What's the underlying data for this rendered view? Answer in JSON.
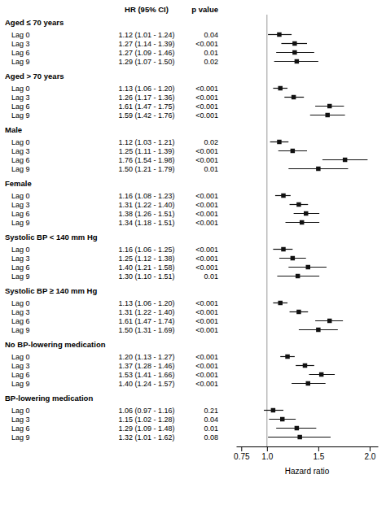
{
  "chart_data": {
    "type": "forest",
    "hr_header": "HR (95% CI)",
    "p_header": "p value",
    "x_label": "Hazard ratio",
    "xlim": [
      0.7,
      2.08
    ],
    "xticks": [
      0.75,
      {
        "value": 1.0,
        "label": "1.0"
      },
      1.5,
      {
        "value": 2.0,
        "label": "2.0"
      }
    ],
    "ref_line": 1.0,
    "color": "#111111",
    "marker": "square",
    "groups": [
      {
        "header": "Aged ≤ 70 years",
        "categories": [
          "Lag 0",
          "Lag 3",
          "Lag 6",
          "Lag 9"
        ],
        "values": [
          1.12,
          1.27,
          1.27,
          1.29
        ],
        "ci_low": [
          1.01,
          1.14,
          1.09,
          1.07
        ],
        "ci_high": [
          1.24,
          1.39,
          1.46,
          1.5
        ],
        "value_labels": [
          "1.12 (1.01 - 1.24)",
          "1.27 (1.14 - 1.39)",
          "1.27 (1.09 - 1.46)",
          "1.29 (1.07 - 1.50)"
        ],
        "p_values": [
          "0.04",
          "<0.001",
          "0.01",
          "0.02"
        ]
      },
      {
        "header": "Aged > 70 years",
        "categories": [
          "Lag 0",
          "Lag 3",
          "Lag 6",
          "Lag 9"
        ],
        "values": [
          1.13,
          1.26,
          1.61,
          1.59
        ],
        "ci_low": [
          1.06,
          1.17,
          1.47,
          1.42
        ],
        "ci_high": [
          1.2,
          1.36,
          1.75,
          1.76
        ],
        "value_labels": [
          "1.13 (1.06 - 1.20)",
          "1.26 (1.17 - 1.36)",
          "1.61 (1.47 - 1.75)",
          "1.59 (1.42 - 1.76)"
        ],
        "p_values": [
          "<0.001",
          "<0.001",
          "<0.001",
          "<0.001"
        ]
      },
      {
        "header": "Male",
        "categories": [
          "Lag 0",
          "Lag 3",
          "Lag 6",
          "Lag 9"
        ],
        "values": [
          1.12,
          1.25,
          1.76,
          1.5
        ],
        "ci_low": [
          1.03,
          1.11,
          1.54,
          1.21
        ],
        "ci_high": [
          1.21,
          1.39,
          1.98,
          1.79
        ],
        "value_labels": [
          "1.12 (1.03 - 1.21)",
          "1.25 (1.11 - 1.39)",
          "1.76 (1.54 - 1.98)",
          "1.50 (1.21 - 1.79)"
        ],
        "p_values": [
          "0.02",
          "<0.001",
          "<0.001",
          "0.01"
        ]
      },
      {
        "header": "Female",
        "categories": [
          "Lag 0",
          "Lag 3",
          "Lag 6",
          "Lag 9"
        ],
        "values": [
          1.16,
          1.31,
          1.38,
          1.34
        ],
        "ci_low": [
          1.08,
          1.22,
          1.26,
          1.18
        ],
        "ci_high": [
          1.23,
          1.4,
          1.51,
          1.51
        ],
        "value_labels": [
          "1.16 (1.08 - 1.23)",
          "1.31 (1.22 - 1.40)",
          "1.38 (1.26 - 1.51)",
          "1.34 (1.18 - 1.51)"
        ],
        "p_values": [
          "<0.001",
          "<0.001",
          "<0.001",
          "<0.001"
        ]
      },
      {
        "header": "Systolic BP < 140 mm Hg",
        "categories": [
          "Lag 0",
          "Lag 3",
          "Lag 6",
          "Lag 9"
        ],
        "values": [
          1.16,
          1.25,
          1.4,
          1.3
        ],
        "ci_low": [
          1.06,
          1.12,
          1.21,
          1.1
        ],
        "ci_high": [
          1.25,
          1.38,
          1.58,
          1.51
        ],
        "value_labels": [
          "1.16 (1.06 - 1.25)",
          "1.25 (1.12 - 1.38)",
          "1.40 (1.21 - 1.58)",
          "1.30 (1.10 - 1.51)"
        ],
        "p_values": [
          "<0.001",
          "<0.001",
          "<0.001",
          "0.01"
        ]
      },
      {
        "header": "Systolic BP ≥ 140 mm Hg",
        "categories": [
          "Lag 0",
          "Lag 3",
          "Lag 6",
          "Lag 9"
        ],
        "values": [
          1.13,
          1.31,
          1.61,
          1.5
        ],
        "ci_low": [
          1.06,
          1.22,
          1.47,
          1.31
        ],
        "ci_high": [
          1.2,
          1.4,
          1.74,
          1.69
        ],
        "value_labels": [
          "1.13 (1.06 - 1.20)",
          "1.31 (1.22 - 1.40)",
          "1.61 (1.47 - 1.74)",
          "1.50 (1.31 - 1.69)"
        ],
        "p_values": [
          "<0.001",
          "<0.001",
          "<0.001",
          "<0.001"
        ]
      },
      {
        "header": "No BP-lowering medication",
        "categories": [
          "Lag 0",
          "Lag 3",
          "Lag 6",
          "Lag 9"
        ],
        "values": [
          1.2,
          1.37,
          1.53,
          1.4
        ],
        "ci_low": [
          1.13,
          1.28,
          1.41,
          1.24
        ],
        "ci_high": [
          1.27,
          1.46,
          1.66,
          1.57
        ],
        "value_labels": [
          "1.20 (1.13 - 1.27)",
          "1.37 (1.28 - 1.46)",
          "1.53 (1.41 - 1.66)",
          "1.40 (1.24 - 1.57)"
        ],
        "p_values": [
          "<0.001",
          "<0.001",
          "<0.001",
          "<0.001"
        ]
      },
      {
        "header": "BP-lowering medication",
        "categories": [
          "Lag 0",
          "Lag 3",
          "Lag 6",
          "Lag 9"
        ],
        "values": [
          1.06,
          1.15,
          1.29,
          1.32
        ],
        "ci_low": [
          0.97,
          1.02,
          1.09,
          1.01
        ],
        "ci_high": [
          1.16,
          1.28,
          1.48,
          1.62
        ],
        "value_labels": [
          "1.06 (0.97 - 1.16)",
          "1.15 (1.02 - 1.28)",
          "1.29 (1.09 - 1.48)",
          "1.32 (1.01 - 1.62)"
        ],
        "p_values": [
          "0.21",
          "0.04",
          "0.01",
          "0.08"
        ]
      }
    ]
  }
}
